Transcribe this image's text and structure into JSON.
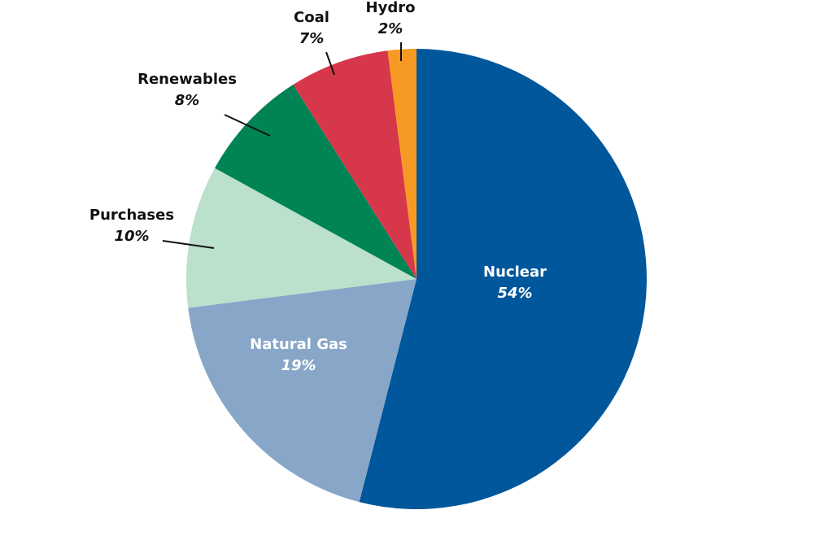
{
  "chart_data": {
    "type": "pie",
    "title": "",
    "legend": "none",
    "start_angle_deg": 0,
    "direction": "clockwise",
    "slices": [
      {
        "label": "Nuclear",
        "value": 54,
        "value_label": "54%",
        "color": "#01579b",
        "text_color": "#ffffff",
        "label_placement": "inside"
      },
      {
        "label": "Natural Gas",
        "value": 19,
        "value_label": "19%",
        "color": "#87a6c8",
        "text_color": "#ffffff",
        "label_placement": "inside"
      },
      {
        "label": "Purchases",
        "value": 10,
        "value_label": "10%",
        "color": "#bbe0cc",
        "text_color": "#111111",
        "label_placement": "outside"
      },
      {
        "label": "Renewables",
        "value": 8,
        "value_label": "8%",
        "color": "#008454",
        "text_color": "#111111",
        "label_placement": "outside"
      },
      {
        "label": "Coal",
        "value": 7,
        "value_label": "7%",
        "color": "#d7374b",
        "text_color": "#111111",
        "label_placement": "outside"
      },
      {
        "label": "Hydro",
        "value": 2,
        "value_label": "2%",
        "color": "#f79a23",
        "text_color": "#111111",
        "label_placement": "outside"
      }
    ]
  }
}
